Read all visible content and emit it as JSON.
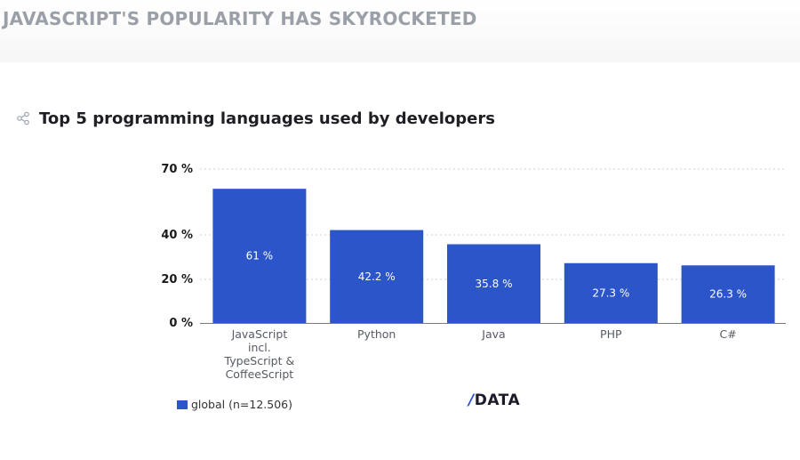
{
  "header": {
    "headline": "JAVASCRIPT'S POPULARITY HAS SKYROCKETED"
  },
  "chart_header": {
    "title": "Top 5 programming languages used by developers",
    "icon": "share-icon"
  },
  "legend": {
    "label": "global (n=12.506)"
  },
  "logo": {
    "text": "DATA",
    "slash": "/"
  },
  "colors": {
    "bar": "#2b55c8",
    "grid": "#cfcfcf",
    "headline": "#9ba0a8"
  },
  "chart_data": {
    "type": "bar",
    "categories": [
      [
        "JavaScript",
        "incl.",
        "TypeScript &",
        "CoffeeScript"
      ],
      [
        "Python"
      ],
      [
        "Java"
      ],
      [
        "PHP"
      ],
      [
        "C#"
      ]
    ],
    "series": [
      {
        "name": "global (n=12.506)",
        "values": [
          61,
          42.2,
          35.8,
          27.3,
          26.3
        ]
      }
    ],
    "data_labels": [
      "61 %",
      "42.2 %",
      "35.8 %",
      "27.3 %",
      "26.3 %"
    ],
    "y_ticks": [
      0,
      20,
      40,
      70
    ],
    "y_tick_labels": [
      "0 %",
      "20 %",
      "40 %",
      "70 %"
    ],
    "ylim": [
      0,
      70
    ],
    "grid": true,
    "legend_position": "bottom-left"
  }
}
